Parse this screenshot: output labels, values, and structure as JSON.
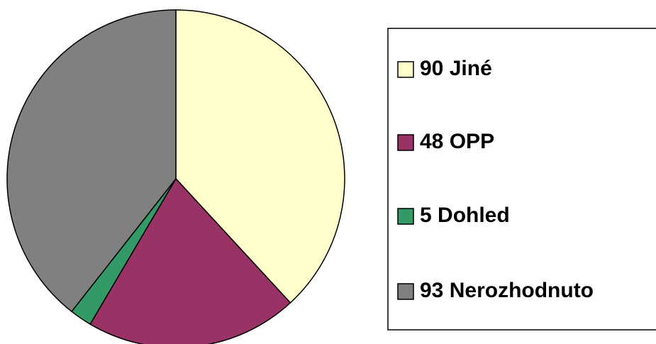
{
  "chart_data": {
    "type": "pie",
    "categories": [
      "Jiné",
      "OPP",
      "Dohled",
      "Nerozhodnuto"
    ],
    "values": [
      90,
      48,
      5,
      93
    ],
    "colors": [
      "#FFFFCC",
      "#993366",
      "#339966",
      "#808080"
    ]
  }
}
